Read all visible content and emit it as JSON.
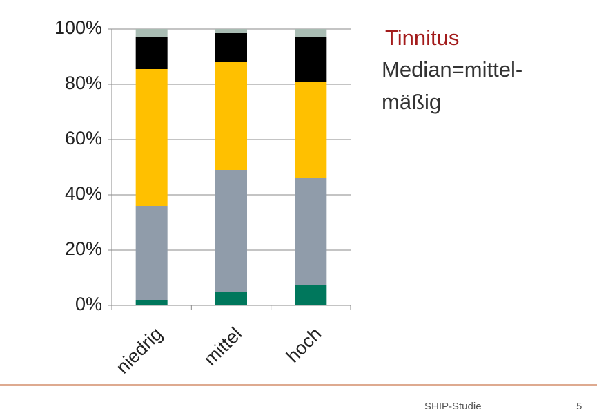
{
  "chart_data": {
    "type": "stacked_bar",
    "categories": [
      "niedrig",
      "mittel",
      "hoch"
    ],
    "series": [
      {
        "color": "#00775c",
        "values": [
          2,
          5,
          7.5
        ]
      },
      {
        "color": "#909caa",
        "values": [
          34,
          44,
          38.5
        ]
      },
      {
        "color": "#ffc000",
        "values": [
          49.5,
          39,
          35
        ]
      },
      {
        "color": "#000000",
        "values": [
          11.5,
          10.5,
          16
        ]
      },
      {
        "color": "#a9bcb3",
        "values": [
          3,
          1.5,
          3
        ]
      }
    ],
    "ylim": [
      0,
      100
    ],
    "yticks": [
      {
        "value": 0,
        "label": "0%"
      },
      {
        "value": 20,
        "label": "20%"
      },
      {
        "value": 40,
        "label": "40%"
      },
      {
        "value": 60,
        "label": "60%"
      },
      {
        "value": 80,
        "label": "80%"
      },
      {
        "value": 100,
        "label": "100%"
      }
    ],
    "grid": true,
    "annotations": [
      "Tinnitus",
      "Median=mittel-",
      "mäßig"
    ],
    "footer": {
      "source": "SHIP-Studie",
      "page": "5"
    }
  }
}
